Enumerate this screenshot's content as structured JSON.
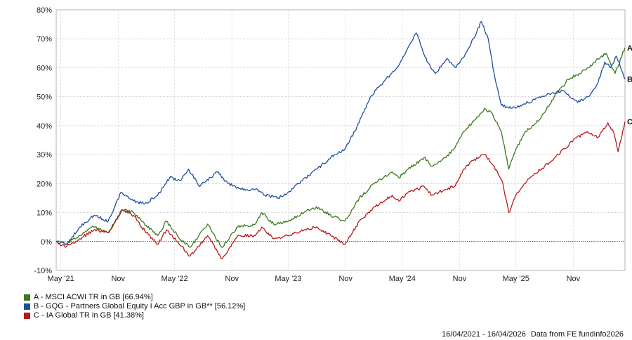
{
  "chart_data": {
    "type": "line",
    "ylim": [
      -10,
      80
    ],
    "yticks": [
      "-10%",
      "0%",
      "10%",
      "20%",
      "30%",
      "40%",
      "50%",
      "60%",
      "70%",
      "80%"
    ],
    "xticks": [
      "May '21",
      "Nov",
      "May '22",
      "Nov",
      "May '23",
      "Nov",
      "May '24",
      "Nov",
      "May '25",
      "Nov"
    ],
    "xtick_dates": [
      "2021-05-01",
      "2021-11-01",
      "2022-05-01",
      "2022-11-01",
      "2023-05-01",
      "2023-11-01",
      "2024-05-01",
      "2024-11-01",
      "2025-05-01",
      "2025-11-01"
    ],
    "xlim": [
      "2021-04-16",
      "2026-04-16"
    ],
    "grid": true,
    "legend_position": "bottom-left",
    "series": [
      {
        "name": "A - MSCI ACWI TR in GB [66.94%]",
        "end_label": "A",
        "color": "#3a7a1e",
        "points": [
          [
            "2021-04-16",
            0
          ],
          [
            "2021-05-15",
            -1
          ],
          [
            "2021-07-01",
            2
          ],
          [
            "2021-08-15",
            5
          ],
          [
            "2021-09-30",
            3
          ],
          [
            "2021-11-15",
            11
          ],
          [
            "2021-12-20",
            10
          ],
          [
            "2022-01-15",
            7
          ],
          [
            "2022-03-08",
            2
          ],
          [
            "2022-04-05",
            7
          ],
          [
            "2022-05-10",
            2
          ],
          [
            "2022-06-20",
            -2
          ],
          [
            "2022-08-15",
            6
          ],
          [
            "2022-09-30",
            -2
          ],
          [
            "2022-11-20",
            5
          ],
          [
            "2023-01-15",
            6
          ],
          [
            "2023-02-05",
            10
          ],
          [
            "2023-03-15",
            6
          ],
          [
            "2023-05-01",
            7
          ],
          [
            "2023-06-20",
            10
          ],
          [
            "2023-07-30",
            12
          ],
          [
            "2023-09-15",
            9
          ],
          [
            "2023-10-30",
            7
          ],
          [
            "2023-12-15",
            15
          ],
          [
            "2024-02-01",
            20
          ],
          [
            "2024-03-30",
            24
          ],
          [
            "2024-04-20",
            22
          ],
          [
            "2024-05-20",
            25
          ],
          [
            "2024-07-10",
            29
          ],
          [
            "2024-08-05",
            26
          ],
          [
            "2024-09-15",
            29
          ],
          [
            "2024-10-15",
            32
          ],
          [
            "2024-11-15",
            38
          ],
          [
            "2024-12-20",
            42
          ],
          [
            "2025-01-20",
            46
          ],
          [
            "2025-02-15",
            44
          ],
          [
            "2025-03-15",
            38
          ],
          [
            "2025-04-08",
            25
          ],
          [
            "2025-05-01",
            32
          ],
          [
            "2025-06-01",
            38
          ],
          [
            "2025-07-15",
            42
          ],
          [
            "2025-09-01",
            50
          ],
          [
            "2025-10-15",
            56
          ],
          [
            "2025-11-20",
            58
          ],
          [
            "2025-12-20",
            60
          ],
          [
            "2026-01-20",
            63
          ],
          [
            "2026-02-15",
            65
          ],
          [
            "2026-03-15",
            58
          ],
          [
            "2026-04-16",
            66.94
          ]
        ]
      },
      {
        "name": "B - GQG - Partners Global Equity I Acc GBP in GB** [56.12%]",
        "end_label": "B",
        "color": "#1f4ea0",
        "points": [
          [
            "2021-04-16",
            0
          ],
          [
            "2021-05-20",
            -1
          ],
          [
            "2021-07-01",
            5
          ],
          [
            "2021-08-15",
            9
          ],
          [
            "2021-09-30",
            7
          ],
          [
            "2021-11-10",
            17
          ],
          [
            "2021-12-20",
            14
          ],
          [
            "2022-01-25",
            13
          ],
          [
            "2022-03-08",
            16
          ],
          [
            "2022-04-15",
            22
          ],
          [
            "2022-05-20",
            21
          ],
          [
            "2022-06-15",
            25
          ],
          [
            "2022-07-20",
            19
          ],
          [
            "2022-09-15",
            24
          ],
          [
            "2022-10-20",
            20
          ],
          [
            "2022-12-01",
            18
          ],
          [
            "2023-01-15",
            18
          ],
          [
            "2023-02-15",
            16
          ],
          [
            "2023-03-30",
            15
          ],
          [
            "2023-05-01",
            17
          ],
          [
            "2023-06-15",
            21
          ],
          [
            "2023-08-01",
            25
          ],
          [
            "2023-09-15",
            29
          ],
          [
            "2023-10-30",
            32
          ],
          [
            "2023-12-01",
            38
          ],
          [
            "2024-01-20",
            50
          ],
          [
            "2024-03-01",
            55
          ],
          [
            "2024-04-15",
            60
          ],
          [
            "2024-05-25",
            68
          ],
          [
            "2024-06-15",
            72
          ],
          [
            "2024-07-20",
            62
          ],
          [
            "2024-08-15",
            58
          ],
          [
            "2024-09-20",
            63
          ],
          [
            "2024-10-20",
            60
          ],
          [
            "2024-11-20",
            65
          ],
          [
            "2024-12-15",
            70
          ],
          [
            "2025-01-10",
            76
          ],
          [
            "2025-02-01",
            70
          ],
          [
            "2025-02-20",
            58
          ],
          [
            "2025-03-15",
            47
          ],
          [
            "2025-04-15",
            46
          ],
          [
            "2025-05-15",
            47
          ],
          [
            "2025-07-01",
            49
          ],
          [
            "2025-08-15",
            51
          ],
          [
            "2025-10-01",
            52
          ],
          [
            "2025-11-15",
            48
          ],
          [
            "2025-12-20",
            50
          ],
          [
            "2026-01-20",
            55
          ],
          [
            "2026-02-10",
            62
          ],
          [
            "2026-03-01",
            60
          ],
          [
            "2026-03-20",
            64
          ],
          [
            "2026-04-16",
            56.12
          ]
        ]
      },
      {
        "name": "C - IA Global TR in GB [41.38%]",
        "end_label": "C",
        "color": "#b51a1a",
        "points": [
          [
            "2021-04-16",
            0
          ],
          [
            "2021-05-15",
            -2
          ],
          [
            "2021-07-01",
            1
          ],
          [
            "2021-08-15",
            4
          ],
          [
            "2021-09-30",
            3
          ],
          [
            "2021-11-15",
            11
          ],
          [
            "2021-12-20",
            9
          ],
          [
            "2022-01-15",
            5
          ],
          [
            "2022-03-08",
            -1
          ],
          [
            "2022-04-05",
            4
          ],
          [
            "2022-05-10",
            0
          ],
          [
            "2022-06-20",
            -5
          ],
          [
            "2022-08-15",
            2
          ],
          [
            "2022-09-30",
            -6
          ],
          [
            "2022-11-20",
            2
          ],
          [
            "2023-01-15",
            2
          ],
          [
            "2023-02-05",
            5
          ],
          [
            "2023-03-15",
            1
          ],
          [
            "2023-05-01",
            2
          ],
          [
            "2023-06-20",
            4
          ],
          [
            "2023-07-30",
            5
          ],
          [
            "2023-09-15",
            2
          ],
          [
            "2023-10-30",
            -1
          ],
          [
            "2023-12-15",
            7
          ],
          [
            "2024-02-01",
            12
          ],
          [
            "2024-03-30",
            16
          ],
          [
            "2024-04-20",
            14
          ],
          [
            "2024-05-20",
            17
          ],
          [
            "2024-07-10",
            19
          ],
          [
            "2024-08-05",
            16
          ],
          [
            "2024-09-15",
            18
          ],
          [
            "2024-10-15",
            19
          ],
          [
            "2024-11-15",
            25
          ],
          [
            "2024-12-15",
            28
          ],
          [
            "2025-01-20",
            30
          ],
          [
            "2025-02-20",
            26
          ],
          [
            "2025-03-20",
            20
          ],
          [
            "2025-04-08",
            10
          ],
          [
            "2025-05-01",
            16
          ],
          [
            "2025-06-15",
            22
          ],
          [
            "2025-08-01",
            26
          ],
          [
            "2025-09-15",
            30
          ],
          [
            "2025-11-01",
            35
          ],
          [
            "2025-12-15",
            38
          ],
          [
            "2026-01-20",
            36
          ],
          [
            "2026-02-20",
            41
          ],
          [
            "2026-03-10",
            38
          ],
          [
            "2026-03-25",
            31
          ],
          [
            "2026-04-16",
            41.38
          ]
        ]
      }
    ]
  },
  "footer": {
    "date_range": "16/04/2021 - 16/04/2026",
    "source": "Data from FE fundinfo2026"
  }
}
